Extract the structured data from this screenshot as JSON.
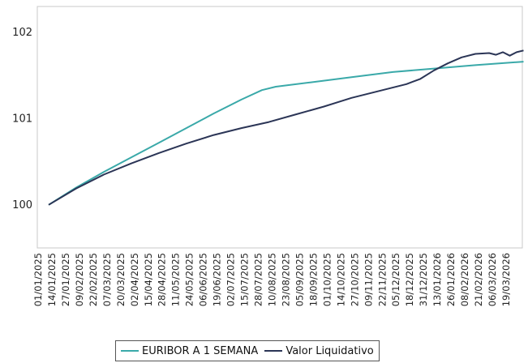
{
  "chart_data": {
    "type": "line",
    "title": "",
    "xlabel": "",
    "ylabel": "",
    "ylim": [
      99.5,
      102.3
    ],
    "y_ticks": [
      "100",
      "101",
      "102"
    ],
    "y_tick_values": [
      100,
      101,
      102
    ],
    "x_tick_labels": [
      "01/01/2025",
      "14/01/2025",
      "27/01/2025",
      "09/02/2025",
      "22/02/2025",
      "07/03/2025",
      "20/03/2025",
      "02/04/2025",
      "15/04/2025",
      "28/04/2025",
      "11/05/2025",
      "24/05/2025",
      "06/06/2025",
      "19/06/2025",
      "02/07/2025",
      "15/07/2025",
      "28/07/2025",
      "10/08/2025",
      "23/08/2025",
      "05/09/2025",
      "18/09/2025",
      "01/10/2025",
      "14/10/2025",
      "27/10/2025",
      "09/11/2025",
      "22/11/2025",
      "05/12/2025",
      "18/12/2025",
      "31/12/2025",
      "13/01/2026",
      "26/01/2026",
      "08/02/2026",
      "21/02/2026",
      "06/03/2026",
      "19/03/2026"
    ],
    "grid": false,
    "legend_position": "bottom",
    "series": [
      {
        "name": "EURIBOR A 1 SEMANA",
        "color": "#3aa9a9",
        "x_index": [
          0,
          2,
          4,
          6,
          8,
          10,
          12,
          14,
          15.5,
          16.5,
          19,
          22,
          25,
          28,
          31,
          34.5
        ],
        "values": [
          100.0,
          100.2,
          100.38,
          100.55,
          100.72,
          100.89,
          101.06,
          101.22,
          101.33,
          101.37,
          101.42,
          101.48,
          101.54,
          101.58,
          101.62,
          101.66
        ]
      },
      {
        "name": "Valor Liquidativo",
        "color": "#2b3556",
        "x_index": [
          0,
          2,
          4,
          6,
          8,
          10,
          12,
          14,
          16,
          18,
          20,
          22,
          24,
          26,
          27,
          28,
          29,
          30,
          31,
          32,
          32.5,
          33,
          33.5,
          34,
          34.5
        ],
        "values": [
          100.0,
          100.19,
          100.35,
          100.48,
          100.6,
          100.71,
          100.81,
          100.89,
          100.96,
          101.05,
          101.14,
          101.24,
          101.32,
          101.4,
          101.46,
          101.56,
          101.64,
          101.71,
          101.75,
          101.76,
          101.74,
          101.77,
          101.73,
          101.77,
          101.79
        ]
      }
    ]
  }
}
